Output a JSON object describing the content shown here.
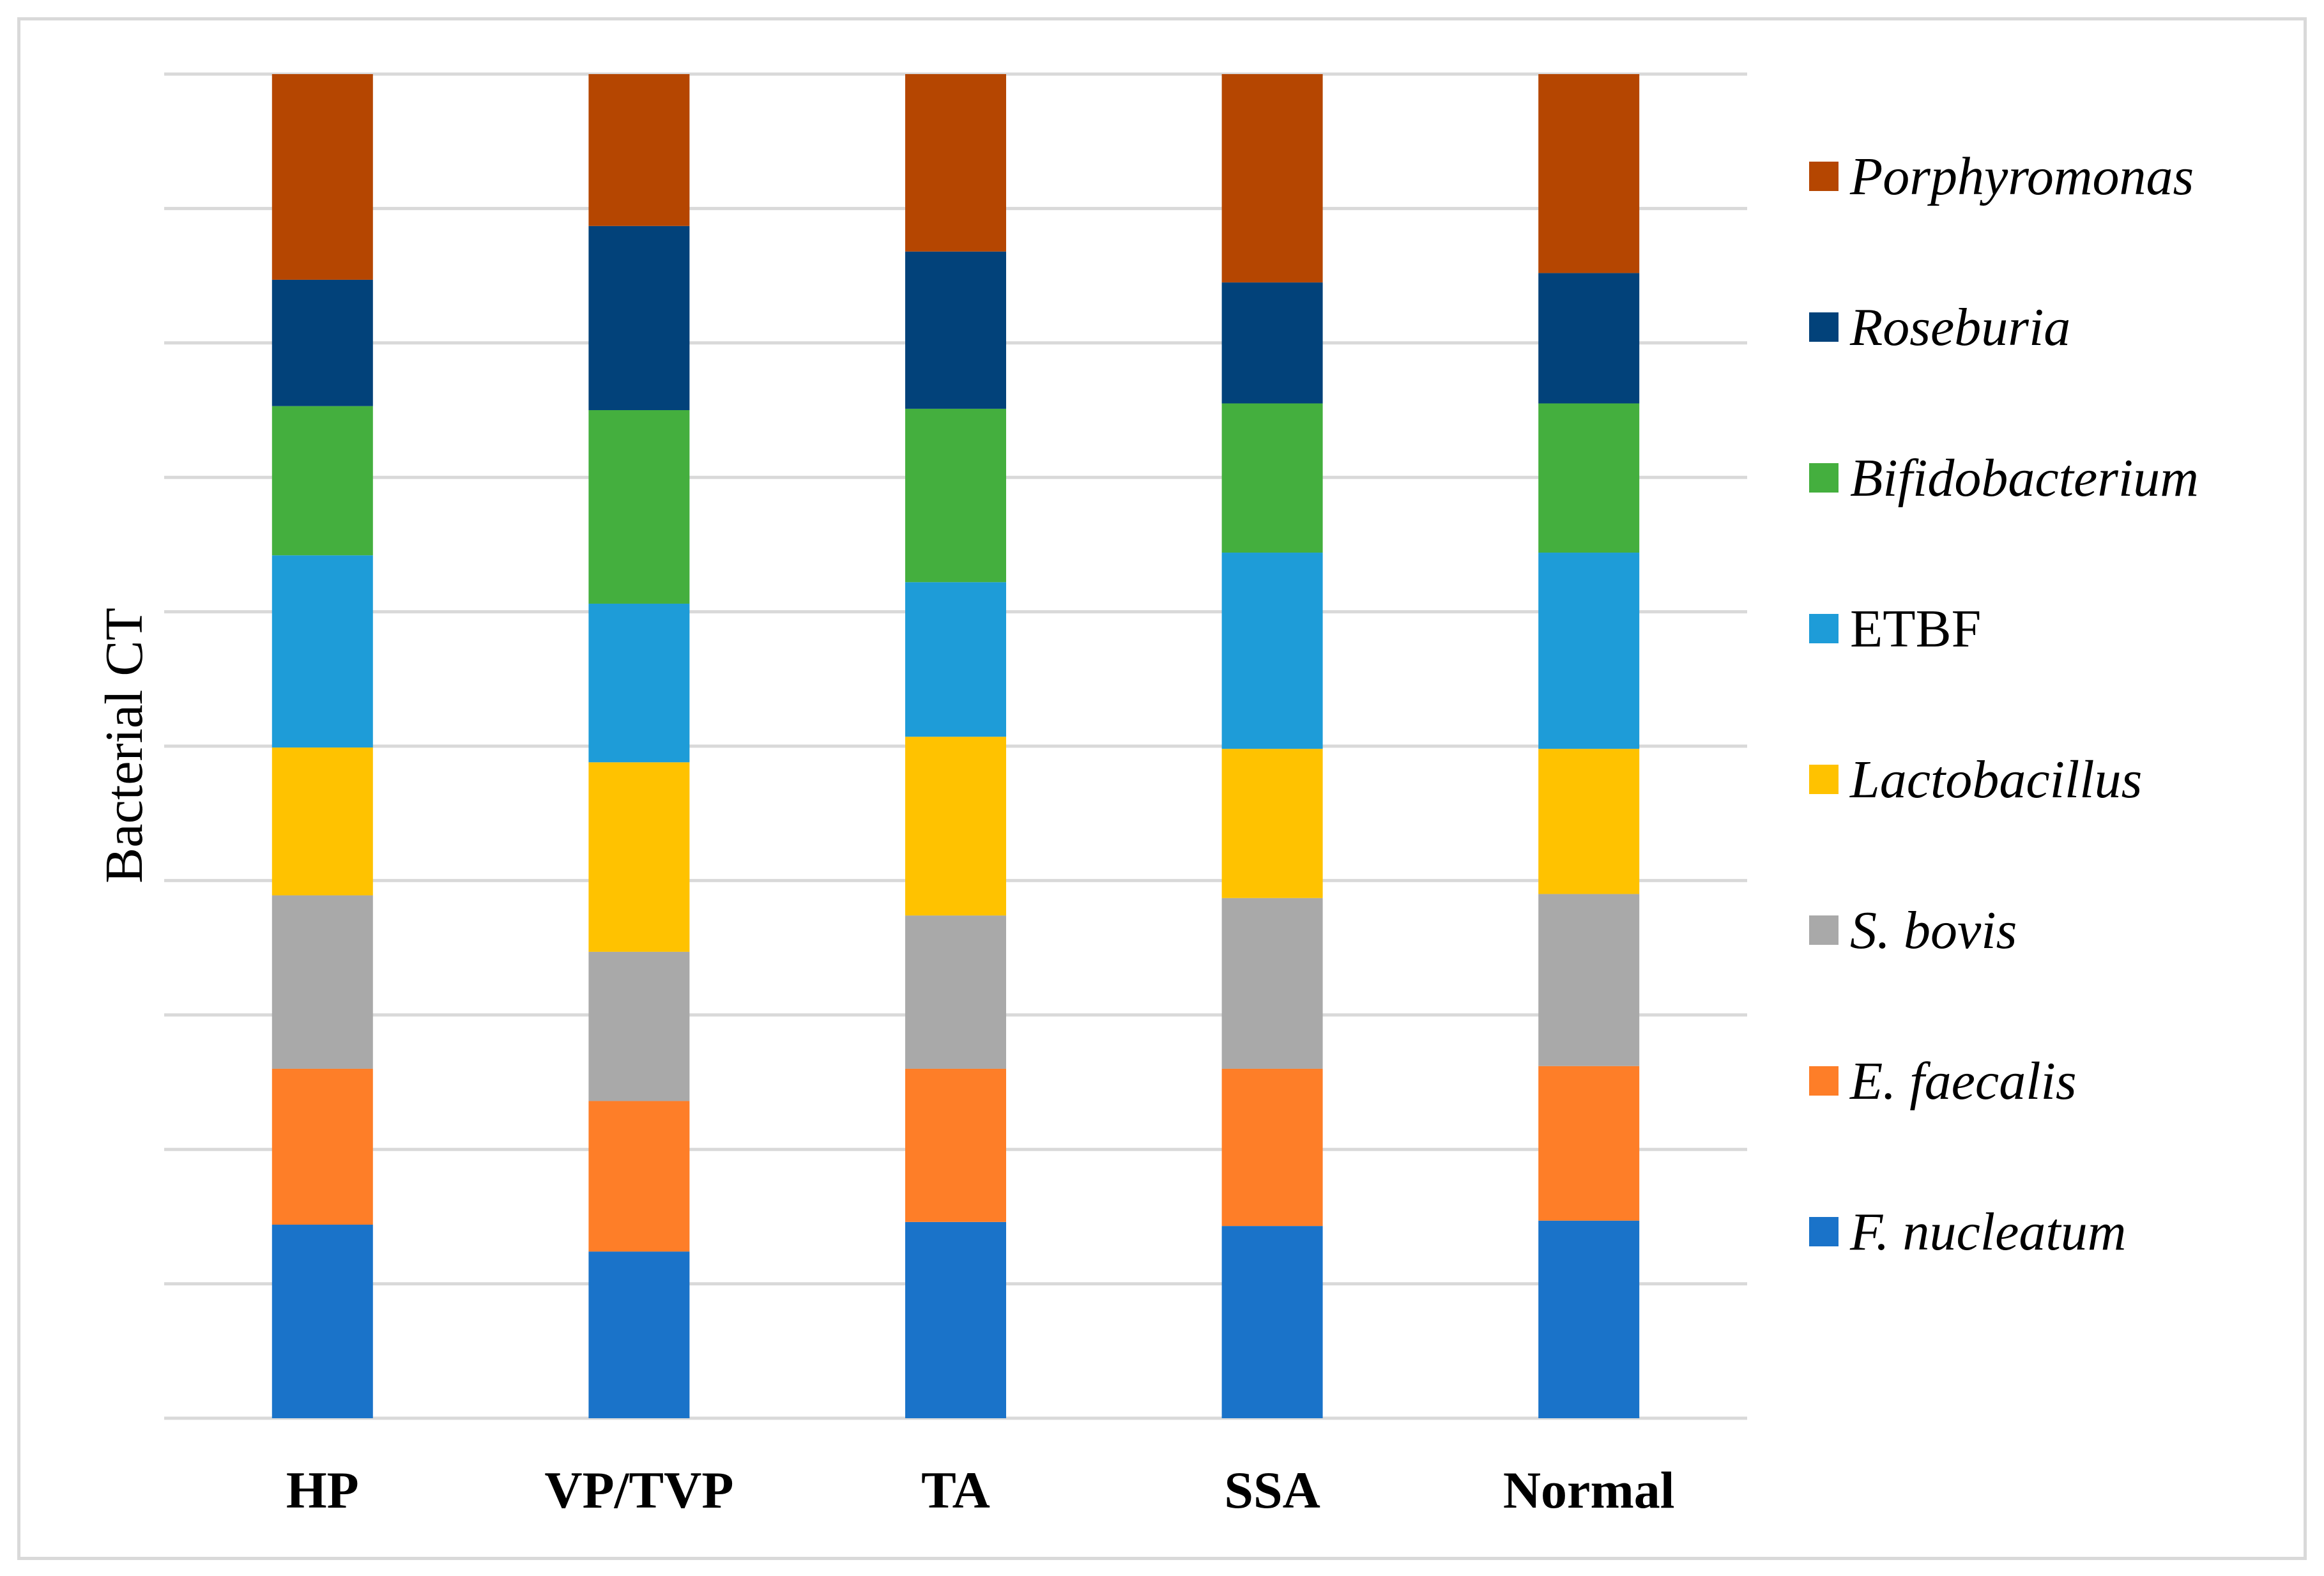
{
  "chart_data": {
    "type": "bar",
    "stacked": true,
    "normalized": true,
    "ylabel": "Bacterial CT",
    "xlabel": "",
    "ylim": [
      0,
      100
    ],
    "y_tick_labels_shown": false,
    "grid": true,
    "legend": "right",
    "categories": [
      "HP",
      "VP/TVP",
      "TA",
      "SSA",
      "Normal"
    ],
    "series": [
      {
        "name": "F. nucleatum",
        "italic": true,
        "color": "#1a73c9",
        "values": [
          14.4,
          12.4,
          14.6,
          14.3,
          14.7
        ]
      },
      {
        "name": "E. faecalis",
        "italic": true,
        "color": "#fe7e28",
        "values": [
          11.6,
          11.2,
          11.4,
          11.7,
          11.5
        ]
      },
      {
        "name": "S. bovis",
        "italic": true,
        "color": "#a9a9a9",
        "values": [
          12.9,
          11.1,
          11.4,
          12.7,
          12.8
        ]
      },
      {
        "name": "Lactobacillus",
        "italic": true,
        "color": "#ffc200",
        "values": [
          11.0,
          14.1,
          13.3,
          11.1,
          10.8
        ]
      },
      {
        "name": "ETBF",
        "italic": false,
        "color": "#1e9cd8",
        "values": [
          14.3,
          11.8,
          11.5,
          14.6,
          14.6
        ]
      },
      {
        "name": "Bifidobacterium",
        "italic": true,
        "color": "#44af3e",
        "values": [
          11.1,
          14.4,
          12.9,
          11.1,
          11.1
        ]
      },
      {
        "name": "Roseburia",
        "italic": true,
        "color": "#02427a",
        "values": [
          9.4,
          13.7,
          11.7,
          9.0,
          9.7
        ]
      },
      {
        "name": "Porphyromonas",
        "italic": true,
        "color": "#b54601",
        "values": [
          15.3,
          11.3,
          13.2,
          15.5,
          14.8
        ]
      }
    ]
  }
}
